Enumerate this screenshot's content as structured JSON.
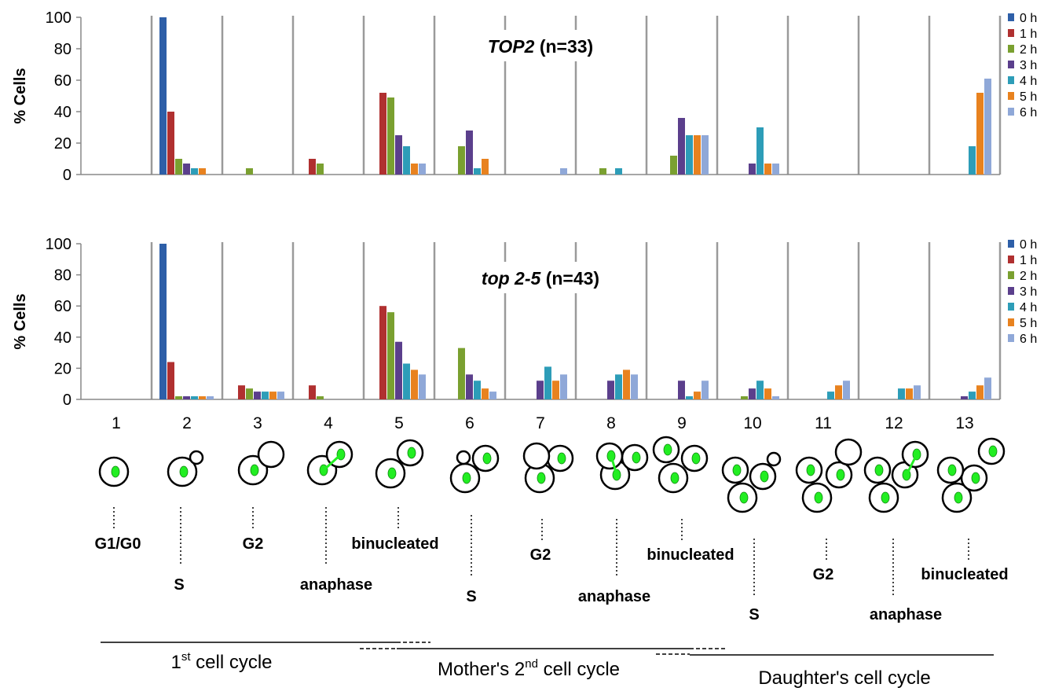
{
  "chart_data": [
    {
      "type": "bar",
      "title": [
        "TOP2",
        "(n=33)"
      ],
      "ylabel": "% Cells",
      "categories": [
        null,
        null,
        null,
        null,
        null,
        null,
        null,
        null,
        null,
        null,
        null,
        null,
        null
      ],
      "ylim": [
        0,
        100
      ],
      "yticks": [
        0,
        20,
        40,
        60,
        80,
        100
      ],
      "series": [
        {
          "name": "0 h",
          "color": "#2e5fa8",
          "values": [
            0,
            100,
            0,
            0,
            0,
            0,
            0,
            0,
            0,
            0,
            0,
            0,
            0
          ]
        },
        {
          "name": "1 h",
          "color": "#b03030",
          "values": [
            0,
            40,
            0,
            10,
            52,
            0,
            0,
            0,
            0,
            0,
            0,
            0,
            0
          ]
        },
        {
          "name": "2 h",
          "color": "#7aa030",
          "values": [
            0,
            10,
            4,
            7,
            49,
            18,
            0,
            4,
            12,
            0,
            0,
            0,
            0
          ]
        },
        {
          "name": "3 h",
          "color": "#5b3f8c",
          "values": [
            0,
            7,
            0,
            0,
            25,
            28,
            0,
            0,
            36,
            7,
            0,
            0,
            0
          ]
        },
        {
          "name": "4 h",
          "color": "#2d9db8",
          "values": [
            0,
            4,
            0,
            0,
            18,
            4,
            0,
            4,
            25,
            30,
            0,
            0,
            18
          ]
        },
        {
          "name": "5 h",
          "color": "#e8821f",
          "values": [
            0,
            4,
            0,
            0,
            7,
            10,
            0,
            0,
            25,
            7,
            0,
            0,
            52
          ]
        },
        {
          "name": "6 h",
          "color": "#8fa8d8",
          "values": [
            0,
            0,
            0,
            0,
            7,
            0,
            4,
            0,
            25,
            7,
            0,
            0,
            61
          ]
        }
      ]
    },
    {
      "type": "bar",
      "title": [
        "top 2-5",
        "(n=43)"
      ],
      "ylabel": "% Cells",
      "categories": [
        "1",
        "2",
        "3",
        "4",
        "5",
        "6",
        "7",
        "8",
        "9",
        "10",
        "11",
        "12",
        "13"
      ],
      "ylim": [
        0,
        100
      ],
      "yticks": [
        0,
        20,
        40,
        60,
        80,
        100
      ],
      "series": [
        {
          "name": "0 h",
          "color": "#2e5fa8",
          "values": [
            0,
            100,
            0,
            0,
            0,
            0,
            0,
            0,
            0,
            0,
            0,
            0,
            0
          ]
        },
        {
          "name": "1 h",
          "color": "#b03030",
          "values": [
            0,
            24,
            9,
            9,
            60,
            0,
            0,
            0,
            0,
            0,
            0,
            0,
            0
          ]
        },
        {
          "name": "2 h",
          "color": "#7aa030",
          "values": [
            0,
            2,
            7,
            2,
            56,
            33,
            0,
            0,
            0,
            2,
            0,
            0,
            0
          ]
        },
        {
          "name": "3 h",
          "color": "#5b3f8c",
          "values": [
            0,
            2,
            5,
            0,
            37,
            16,
            12,
            12,
            12,
            7,
            0,
            0,
            2
          ]
        },
        {
          "name": "4 h",
          "color": "#2d9db8",
          "values": [
            0,
            2,
            5,
            0,
            23,
            12,
            21,
            16,
            2,
            12,
            5,
            7,
            5
          ]
        },
        {
          "name": "5 h",
          "color": "#e8821f",
          "values": [
            0,
            2,
            5,
            0,
            19,
            7,
            12,
            19,
            5,
            7,
            9,
            7,
            9
          ]
        },
        {
          "name": "6 h",
          "color": "#8fa8d8",
          "values": [
            0,
            2,
            5,
            0,
            16,
            5,
            16,
            16,
            12,
            2,
            12,
            9,
            14
          ]
        }
      ]
    }
  ],
  "diagram": {
    "stages": [
      "G1/G0",
      "S",
      "G2",
      "anaphase",
      "binucleated",
      "S",
      "G2",
      "anaphase",
      "binucleated",
      "S",
      "G2",
      "anaphase",
      "binucleated"
    ],
    "cycles": [
      [
        "1",
        "st",
        " cell cycle"
      ],
      [
        "Mother's 2",
        "nd",
        " cell cycle"
      ],
      [
        "Daughter's cell cycle"
      ]
    ]
  }
}
